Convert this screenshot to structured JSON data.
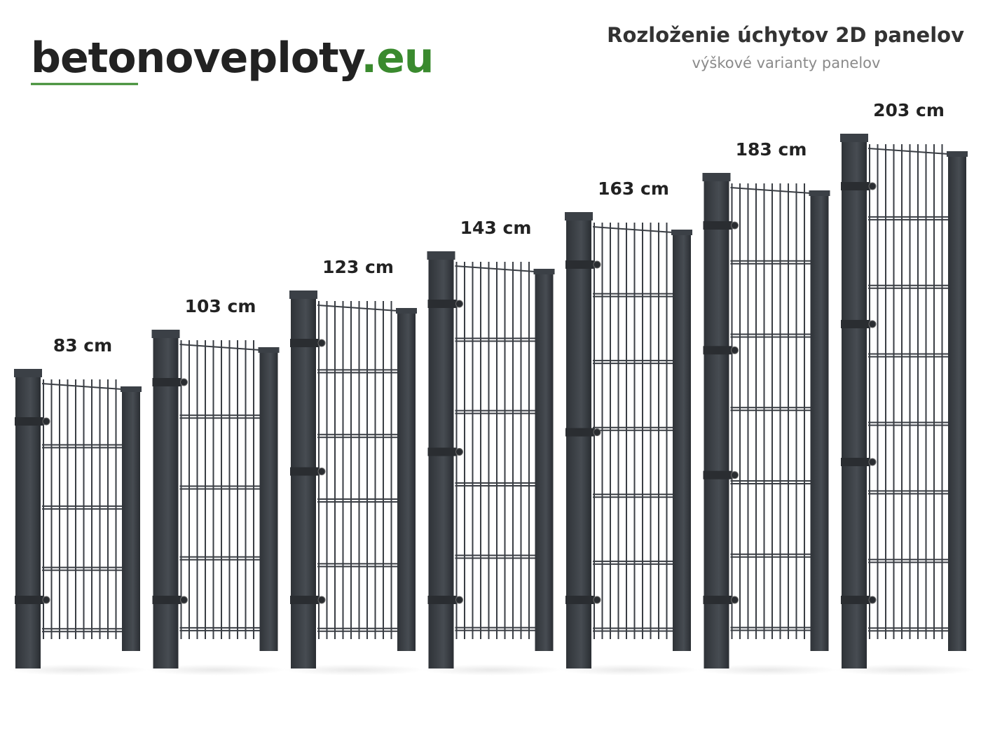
{
  "header": {
    "logo_name": "betonoveploty",
    "logo_domain": ".eu",
    "title": "Rozloženie úchytov 2D panelov",
    "subtitle": "výškové varianty panelov"
  },
  "panels": [
    {
      "label": "83 cm"
    },
    {
      "label": "103 cm"
    },
    {
      "label": "123 cm"
    },
    {
      "label": "143 cm"
    },
    {
      "label": "163 cm"
    },
    {
      "label": "183 cm"
    },
    {
      "label": "203 cm"
    }
  ]
}
